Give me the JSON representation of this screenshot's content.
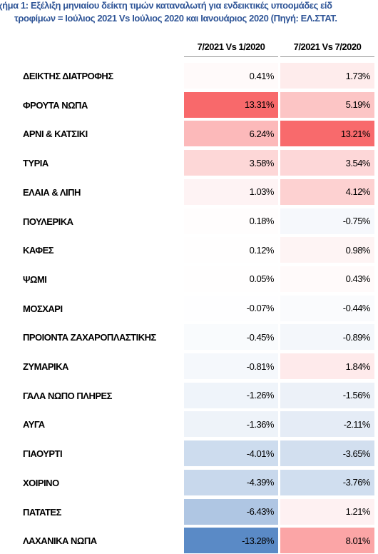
{
  "header": {
    "title_lines": [
      "χήμα 1: Εξέλιξη μηνιαίου δείκτη τιμών καταναλωτή για ενδεικτικές υποομάδες είδ",
      "τροφίμων = Ιούλιος 2021 Vs Ιούλιος 2020 και Ιανουάριος 2020 (Πηγή: ΕΛ.ΣΤΑΤ."
    ]
  },
  "table": {
    "columns": [
      "7/2021 Vs 1/2020",
      "7/2021 Vs 7/2020"
    ],
    "rows": [
      [
        "ΔΕΙΚΤΗΣ ΔΙΑΤΡΟΦΗΣ",
        "0.41%",
        "1.73%"
      ],
      [
        "ΦΡΟΥΤΑ ΝΩΠΑ",
        "13.31%",
        "5.19%"
      ],
      [
        "ΑΡΝΙ & ΚΑΤΣΙΚΙ",
        "6.24%",
        "13.21%"
      ],
      [
        "ΤΥΡΙΑ",
        "3.58%",
        "3.54%"
      ],
      [
        "ΕΛΑΙΑ & ΛΙΠΗ",
        "1.03%",
        "4.12%"
      ],
      [
        "ΠΟΥΛΕΡΙΚΑ",
        "0.18%",
        "-0.75%"
      ],
      [
        "ΚΑΦΕΣ",
        "0.12%",
        "0.98%"
      ],
      [
        "ΨΩΜΙ",
        "0.05%",
        "0.43%"
      ],
      [
        "ΜΟΣΧΑΡΙ",
        "-0.07%",
        "-0.44%"
      ],
      [
        "ΠΡΟΙΟΝΤΑ ΖΑΧΑΡΟΠΛΑΣΤΙΚΗΣ",
        "-0.45%",
        "-0.89%"
      ],
      [
        "ΖΥΜΑΡΙΚΑ",
        "-0.81%",
        "1.84%"
      ],
      [
        "ΓΑΛΑ ΝΩΠΟ ΠΛΗΡΕΣ",
        "-1.26%",
        "-1.56%"
      ],
      [
        "ΑΥΓΑ",
        "-1.36%",
        "-2.11%"
      ],
      [
        "ΓΙΑΟΥΡΤΙ",
        "-4.01%",
        "-3.65%"
      ],
      [
        "ΧΟΙΡΙΝΟ",
        "-4.39%",
        "-3.76%"
      ],
      [
        "ΠΑΤΑΤΕΣ",
        "-6.43%",
        "1.21%"
      ],
      [
        "ΛΑΧΑΝΙΚΑ ΝΩΠΑ",
        "-13.28%",
        "8.01%"
      ]
    ],
    "scale_colors": {
      "low": "#5a8ac6",
      "mid": "#ffffff",
      "high": "#f8696b"
    }
  }
}
